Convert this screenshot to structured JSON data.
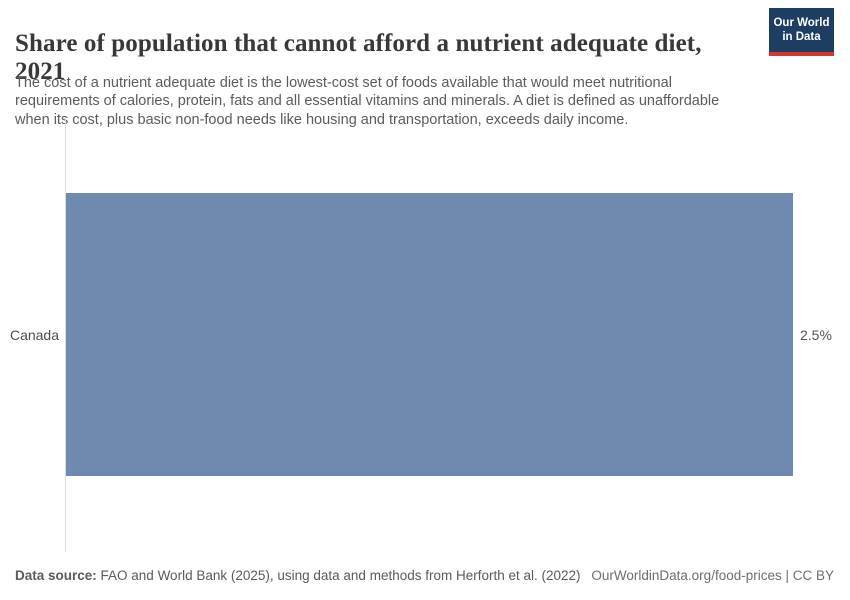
{
  "header": {
    "title": "Share of population that cannot afford a nutrient adequate diet, 2021",
    "subtitle": "The cost of a nutrient adequate diet is the lowest-cost set of foods available that would meet nutritional requirements of calories, protein, fats and all essential vitamins and minerals. A diet is defined as unaffordable when its cost, plus basic non-food needs like housing and transportation, exceeds daily income.",
    "logo": {
      "line1": "Our World",
      "line2": "in Data",
      "bg_color": "#1d3d63",
      "accent_color": "#d8352e"
    }
  },
  "chart_data": {
    "type": "bar",
    "orientation": "horizontal",
    "title": "Share of population that cannot afford a nutrient adequate diet, 2021",
    "categories": [
      "Canada"
    ],
    "values": [
      2.5
    ],
    "value_labels": [
      "2.5%"
    ],
    "xlabel": "",
    "ylabel": "",
    "xlim": [
      0,
      2.5
    ],
    "grid": false,
    "legend": false,
    "bar_color": "#7089b0",
    "axis_line_color": "#dcdcdc"
  },
  "footer": {
    "datasource_label": "Data source:",
    "datasource_text": " FAO and World Bank (2025), using data and methods from Herforth et al. (2022)",
    "link_text": "OurWorldinData.org/food-prices | CC BY"
  }
}
